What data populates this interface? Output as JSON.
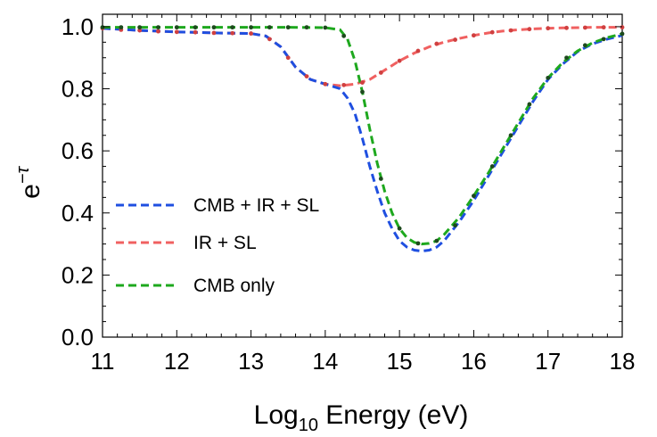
{
  "chart_data": {
    "type": "line",
    "title": "",
    "xlabel": "Log10 Energy (eV)",
    "xlabel_parts": {
      "base": "Log",
      "sub": "10",
      "rest": " Energy (eV)"
    },
    "ylabel": "e^-τ",
    "ylabel_parts": {
      "base": "e",
      "sup": "−τ"
    },
    "xlim": [
      11,
      18
    ],
    "ylim": [
      0,
      1.04
    ],
    "xticks": [
      11,
      12,
      13,
      14,
      15,
      16,
      17,
      18
    ],
    "yticks": [
      0.0,
      0.2,
      0.4,
      0.6,
      0.8,
      1.0
    ],
    "ytick_labels": [
      "0.0",
      "0.2",
      "0.4",
      "0.6",
      "0.8",
      "1.0"
    ],
    "legend_position": "left-middle",
    "series": [
      {
        "name": "CMB + IR + SL",
        "color": "#1f4fe0",
        "style": "dashed",
        "x": [
          11.0,
          11.5,
          12.0,
          12.5,
          13.0,
          13.2,
          13.4,
          13.6,
          13.8,
          14.0,
          14.2,
          14.3,
          14.4,
          14.5,
          14.6,
          14.7,
          14.8,
          14.9,
          15.0,
          15.1,
          15.2,
          15.3,
          15.4,
          15.5,
          15.6,
          15.8,
          16.0,
          16.2,
          16.4,
          16.6,
          16.8,
          17.0,
          17.2,
          17.4,
          17.6,
          17.8,
          18.0
        ],
        "y": [
          0.995,
          0.988,
          0.983,
          0.98,
          0.978,
          0.97,
          0.935,
          0.87,
          0.83,
          0.815,
          0.8,
          0.77,
          0.72,
          0.64,
          0.55,
          0.47,
          0.4,
          0.35,
          0.31,
          0.29,
          0.28,
          0.277,
          0.28,
          0.29,
          0.31,
          0.37,
          0.44,
          0.52,
          0.6,
          0.68,
          0.76,
          0.83,
          0.88,
          0.92,
          0.945,
          0.96,
          0.972
        ]
      },
      {
        "name": "IR + SL",
        "color": "#f06060",
        "style": "dashed",
        "x": [
          11.0,
          11.5,
          12.0,
          12.5,
          13.0,
          13.2,
          13.4,
          13.6,
          13.8,
          14.0,
          14.2,
          14.4,
          14.6,
          14.8,
          15.0,
          15.2,
          15.4,
          15.6,
          15.8,
          16.0,
          16.2,
          16.4,
          16.6,
          16.8,
          17.0,
          17.2,
          17.4,
          17.6,
          17.8,
          18.0
        ],
        "y": [
          0.995,
          0.988,
          0.983,
          0.98,
          0.978,
          0.97,
          0.935,
          0.87,
          0.83,
          0.815,
          0.81,
          0.815,
          0.83,
          0.86,
          0.89,
          0.915,
          0.935,
          0.95,
          0.962,
          0.972,
          0.98,
          0.986,
          0.99,
          0.993,
          0.995,
          0.996,
          0.997,
          0.998,
          0.998,
          0.998
        ]
      },
      {
        "name": "CMB only",
        "color": "#1ea81e",
        "style": "dashed",
        "x": [
          11.0,
          11.5,
          12.0,
          12.5,
          13.0,
          13.5,
          14.0,
          14.2,
          14.3,
          14.4,
          14.5,
          14.6,
          14.7,
          14.8,
          14.9,
          15.0,
          15.1,
          15.2,
          15.3,
          15.4,
          15.5,
          15.6,
          15.8,
          16.0,
          16.2,
          16.4,
          16.6,
          16.8,
          17.0,
          17.2,
          17.4,
          17.6,
          17.8,
          18.0
        ],
        "y": [
          0.998,
          0.998,
          0.998,
          0.998,
          0.998,
          0.998,
          0.997,
          0.99,
          0.96,
          0.89,
          0.79,
          0.67,
          0.56,
          0.47,
          0.4,
          0.35,
          0.32,
          0.305,
          0.3,
          0.302,
          0.31,
          0.33,
          0.385,
          0.455,
          0.53,
          0.61,
          0.69,
          0.77,
          0.835,
          0.885,
          0.922,
          0.948,
          0.965,
          0.977
        ]
      }
    ],
    "markers": {
      "color": "#1d4a1d",
      "x": [
        11.0,
        11.25,
        11.5,
        11.75,
        12.0,
        12.25,
        12.5,
        12.75,
        13.0,
        13.25,
        13.5,
        13.75,
        14.0,
        14.25,
        14.5,
        14.75,
        15.0,
        15.25,
        15.5,
        15.75,
        16.0,
        16.25,
        16.5,
        16.75,
        17.0,
        17.25,
        17.5,
        17.75,
        18.0
      ],
      "y": [
        0.998,
        0.998,
        0.998,
        0.998,
        0.998,
        0.998,
        0.998,
        0.998,
        0.998,
        0.998,
        0.998,
        0.998,
        0.997,
        0.97,
        0.79,
        0.51,
        0.35,
        0.302,
        0.31,
        0.36,
        0.455,
        0.55,
        0.65,
        0.75,
        0.835,
        0.9,
        0.94,
        0.96,
        0.977
      ]
    },
    "markers_ir": {
      "color": "#d04040",
      "x": [
        11.0,
        11.25,
        11.5,
        11.75,
        12.0,
        12.25,
        12.5,
        12.75,
        13.0,
        13.25,
        13.5,
        13.75,
        14.0,
        14.25,
        14.5,
        14.75,
        15.0,
        15.25,
        15.5,
        15.75,
        16.0,
        16.25,
        16.5,
        16.75,
        17.0,
        17.25,
        17.5,
        17.75,
        18.0
      ],
      "y": [
        0.995,
        0.99,
        0.988,
        0.985,
        0.983,
        0.982,
        0.98,
        0.979,
        0.978,
        0.96,
        0.9,
        0.84,
        0.815,
        0.812,
        0.82,
        0.852,
        0.89,
        0.922,
        0.945,
        0.958,
        0.972,
        0.982,
        0.988,
        0.992,
        0.995,
        0.996,
        0.997,
        0.998,
        0.998
      ]
    }
  }
}
